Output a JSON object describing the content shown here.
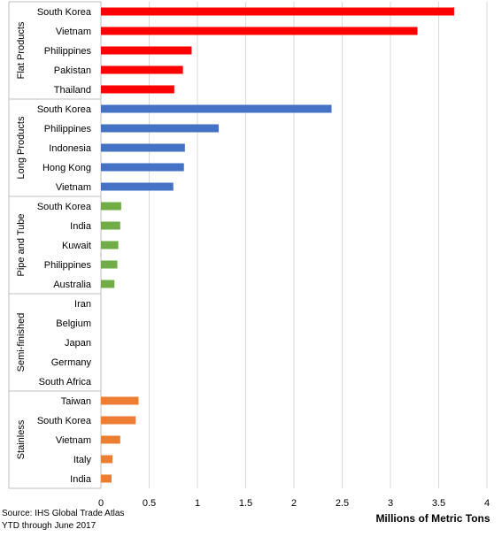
{
  "chart_data": {
    "type": "bar",
    "orientation": "horizontal",
    "xlabel": "Millions of Metric Tons",
    "xlim": [
      0,
      4
    ],
    "xticks": [
      "0",
      "0.5",
      "1",
      "1.5",
      "2",
      "2.5",
      "3",
      "3.5",
      "4"
    ],
    "grid": true,
    "groups": [
      {
        "name": "Flat Products",
        "color": "#ff0000",
        "categories": [
          "South Korea",
          "Vietnam",
          "Philippines",
          "Pakistan",
          "Thailand"
        ],
        "values": [
          3.66,
          3.28,
          0.94,
          0.85,
          0.76
        ]
      },
      {
        "name": "Long Products",
        "color": "#4472c4",
        "categories": [
          "South Korea",
          "Philippines",
          "Indonesia",
          "Hong Kong",
          "Vietnam"
        ],
        "values": [
          2.39,
          1.22,
          0.87,
          0.86,
          0.75
        ]
      },
      {
        "name": "Pipe and Tube",
        "color": "#70ad47",
        "categories": [
          "South Korea",
          "India",
          "Kuwait",
          "Philippines",
          "Australia"
        ],
        "values": [
          0.21,
          0.2,
          0.18,
          0.17,
          0.14
        ]
      },
      {
        "name": "Semi-finished",
        "color": "#a5a5a5",
        "categories": [
          "Iran",
          "Belgium",
          "Japan",
          "Germany",
          "South Africa"
        ],
        "values": [
          0,
          0,
          0,
          0,
          0
        ]
      },
      {
        "name": "Stainless",
        "color": "#ed7d31",
        "categories": [
          "Taiwan",
          "South Korea",
          "Vietnam",
          "Italy",
          "India"
        ],
        "values": [
          0.39,
          0.36,
          0.2,
          0.12,
          0.11
        ]
      }
    ]
  },
  "footer": {
    "source_line1": "Source: IHS Global Trade Atlas",
    "source_line2": "YTD through June 2017"
  }
}
